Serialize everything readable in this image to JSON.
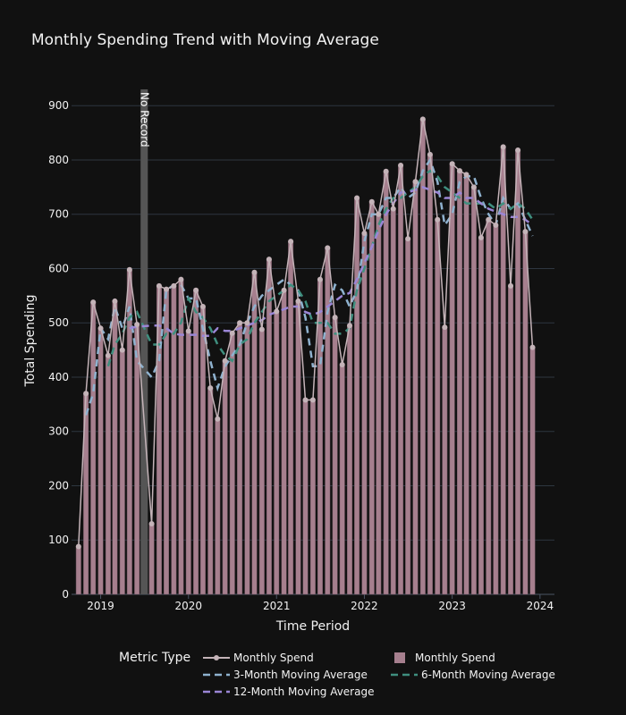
{
  "chart_data": {
    "type": "bar",
    "title": "Monthly Spending Trend with Moving Average",
    "xlabel": "Time Period",
    "ylabel": "Total Spending",
    "ylim": [
      0,
      930
    ],
    "xlim": [
      "2018-09-02",
      "2024-03-01"
    ],
    "x_ticks": [
      {
        "date": "2019-01-01",
        "label": "2019"
      },
      {
        "date": "2020-01-01",
        "label": "2020"
      },
      {
        "date": "2021-01-01",
        "label": "2021"
      },
      {
        "date": "2022-01-01",
        "label": "2022"
      },
      {
        "date": "2023-01-01",
        "label": "2023"
      },
      {
        "date": "2024-01-01",
        "label": "2024"
      }
    ],
    "y_ticks": [
      0,
      100,
      200,
      300,
      400,
      500,
      600,
      700,
      800,
      900
    ],
    "grid": true,
    "x": [
      "2018-10-01",
      "2018-11-01",
      "2018-12-01",
      "2019-01-01",
      "2019-02-01",
      "2019-03-01",
      "2019-04-01",
      "2019-05-01",
      "2019-06-01",
      "2019-08-01",
      "2019-09-01",
      "2019-10-01",
      "2019-11-01",
      "2019-12-01",
      "2020-01-01",
      "2020-02-01",
      "2020-03-01",
      "2020-04-01",
      "2020-05-01",
      "2020-06-01",
      "2020-07-01",
      "2020-08-01",
      "2020-09-01",
      "2020-10-01",
      "2020-11-01",
      "2020-12-01",
      "2021-01-01",
      "2021-02-01",
      "2021-03-01",
      "2021-04-01",
      "2021-05-01",
      "2021-06-01",
      "2021-07-01",
      "2021-08-01",
      "2021-09-01",
      "2021-10-01",
      "2021-11-01",
      "2021-12-01",
      "2022-01-01",
      "2022-02-01",
      "2022-03-01",
      "2022-04-01",
      "2022-05-01",
      "2022-06-01",
      "2022-07-01",
      "2022-08-01",
      "2022-09-01",
      "2022-10-01",
      "2022-11-01",
      "2022-12-01",
      "2023-01-01",
      "2023-02-01",
      "2023-03-01",
      "2023-04-01",
      "2023-05-01",
      "2023-06-01",
      "2023-07-01",
      "2023-08-01",
      "2023-09-01",
      "2023-10-01",
      "2023-11-01",
      "2023-12-01"
    ],
    "series": [
      {
        "name": "Monthly Spend",
        "kind": "bar",
        "color": "#a67f8e",
        "values": [
          88,
          370,
          538,
          490,
          440,
          540,
          450,
          598,
          497,
          130,
          568,
          562,
          568,
          580,
          485,
          560,
          530,
          380,
          323,
          430,
          481,
          500,
          500,
          593,
          488,
          617,
          521,
          560,
          650,
          540,
          358,
          358,
          580,
          638,
          510,
          423,
          495,
          730,
          665,
          723,
          700,
          779,
          710,
          790,
          655,
          760,
          875,
          810,
          690,
          492,
          793,
          780,
          773,
          750,
          657,
          690,
          680,
          824,
          568,
          818,
          668,
          455
        ]
      },
      {
        "name": "Monthly Spend",
        "kind": "line",
        "color": "#c4b3b8",
        "values": [
          88,
          370,
          538,
          490,
          440,
          540,
          450,
          598,
          497,
          130,
          568,
          562,
          568,
          580,
          485,
          560,
          530,
          380,
          323,
          430,
          481,
          500,
          500,
          593,
          488,
          617,
          521,
          560,
          650,
          540,
          358,
          358,
          580,
          638,
          510,
          423,
          495,
          730,
          665,
          723,
          700,
          779,
          710,
          790,
          655,
          760,
          875,
          810,
          690,
          492,
          793,
          780,
          773,
          750,
          657,
          690,
          680,
          824,
          568,
          818,
          668,
          455
        ]
      },
      {
        "name": "3-Month Moving Average",
        "kind": "dash",
        "color": "#8fb2cf",
        "values": [
          null,
          330,
          370,
          490,
          470,
          530,
          490,
          530,
          430,
          400,
          430,
          560,
          570,
          570,
          545,
          545,
          490,
          430,
          380,
          420,
          440,
          460,
          500,
          530,
          550,
          560,
          570,
          580,
          570,
          560,
          510,
          420,
          420,
          520,
          570,
          560,
          530,
          560,
          650,
          700,
          700,
          730,
          730,
          750,
          730,
          740,
          780,
          800,
          760,
          680,
          700,
          760,
          770,
          770,
          730,
          700,
          680,
          730,
          710,
          720,
          690,
          660
        ]
      },
      {
        "name": "6-Month Moving Average",
        "kind": "dash",
        "color": "#3f8f7f",
        "values": [
          null,
          null,
          null,
          null,
          420,
          460,
          480,
          510,
          520,
          460,
          460,
          480,
          480,
          500,
          545,
          520,
          510,
          490,
          460,
          440,
          430,
          460,
          470,
          500,
          520,
          540,
          550,
          560,
          570,
          560,
          540,
          500,
          500,
          500,
          480,
          480,
          490,
          560,
          600,
          640,
          680,
          710,
          730,
          730,
          740,
          750,
          770,
          780,
          770,
          750,
          740,
          730,
          720,
          720,
          720,
          720,
          710,
          720,
          710,
          720,
          710,
          690
        ]
      },
      {
        "name": "12-Month Moving Average",
        "kind": "dash",
        "color": "#9b86d6",
        "values": [
          null,
          null,
          null,
          null,
          null,
          null,
          null,
          490,
          493,
          495,
          495,
          490,
          480,
          478,
          478,
          478,
          476,
          476,
          490,
          485,
          485,
          490,
          495,
          500,
          505,
          515,
          520,
          525,
          530,
          530,
          520,
          515,
          520,
          530,
          540,
          550,
          555,
          580,
          610,
          640,
          670,
          700,
          720,
          740,
          740,
          745,
          750,
          745,
          740,
          730,
          730,
          740,
          730,
          730,
          720,
          710,
          705,
          700,
          695,
          695,
          690,
          680
        ]
      }
    ],
    "annotations": [
      {
        "text": "No Record",
        "x0": "2019-06-16",
        "x1": "2019-07-16",
        "color": "#555555"
      }
    ],
    "legend": {
      "title": "Metric Type",
      "placement": "bottom",
      "items": [
        {
          "label": "Monthly Spend",
          "symbol": "line-marker",
          "color": "#c4b3b8"
        },
        {
          "label": "Monthly Spend",
          "symbol": "square",
          "color": "#a67f8e"
        },
        {
          "label": "3-Month Moving Average",
          "symbol": "dash",
          "color": "#8fb2cf"
        },
        {
          "label": "6-Month Moving Average",
          "symbol": "dash",
          "color": "#3f8f7f"
        },
        {
          "label": "12-Month Moving Average",
          "symbol": "dash",
          "color": "#9b86d6"
        }
      ]
    }
  },
  "colors": {
    "background": "#111111",
    "grid": "#2e3640",
    "text": "#f2f2f2"
  }
}
